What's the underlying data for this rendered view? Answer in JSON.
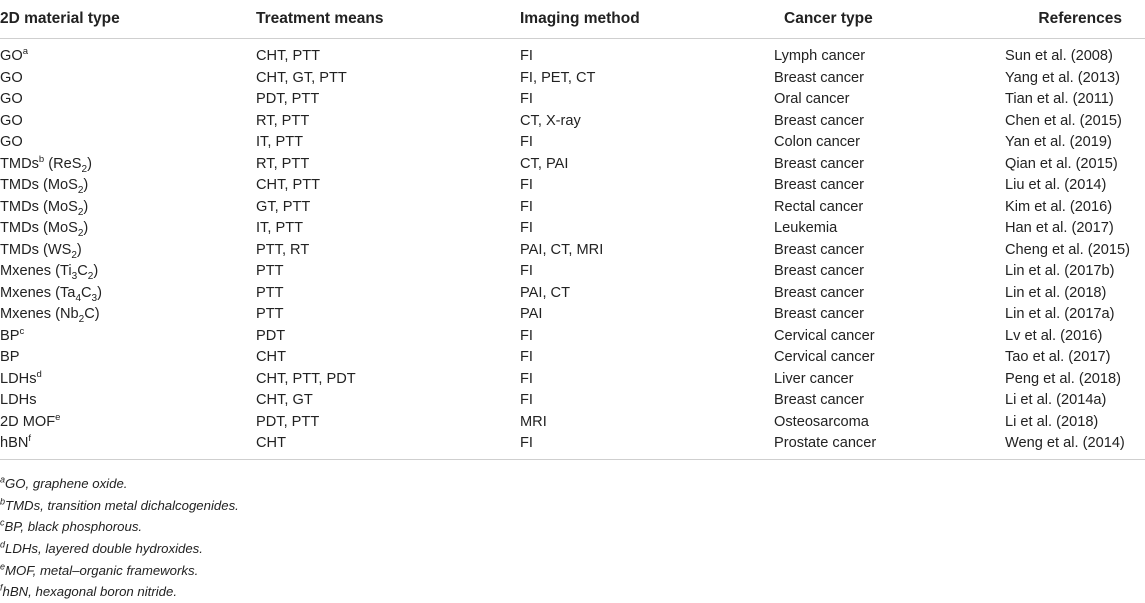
{
  "headers": [
    "2D material type",
    "Treatment means",
    "Imaging method",
    "Cancer type",
    "References"
  ],
  "rows": [
    {
      "mat": "GO",
      "mat_sup": "a",
      "mat_sub": "",
      "mat_tail": "",
      "treat": "CHT, PTT",
      "img": "FI",
      "cancer": "Lymph cancer",
      "ref": "Sun et al. (2008)"
    },
    {
      "mat": "GO",
      "mat_sup": "",
      "mat_sub": "",
      "mat_tail": "",
      "treat": "CHT, GT, PTT",
      "img": "FI, PET, CT",
      "cancer": "Breast cancer",
      "ref": "Yang et al. (2013)"
    },
    {
      "mat": "GO",
      "mat_sup": "",
      "mat_sub": "",
      "mat_tail": "",
      "treat": "PDT, PTT",
      "img": "FI",
      "cancer": "Oral cancer",
      "ref": "Tian et al. (2011)"
    },
    {
      "mat": "GO",
      "mat_sup": "",
      "mat_sub": "",
      "mat_tail": "",
      "treat": "RT, PTT",
      "img": "CT, X-ray",
      "cancer": "Breast cancer",
      "ref": "Chen et al. (2015)"
    },
    {
      "mat": "GO",
      "mat_sup": "",
      "mat_sub": "",
      "mat_tail": "",
      "treat": "IT, PTT",
      "img": "FI",
      "cancer": "Colon cancer",
      "ref": "Yan et al. (2019)"
    },
    {
      "mat": "TMDs",
      "mat_sup": "b",
      "mat_sub": "",
      "mat_tail": " (ReS2)",
      "treat": "RT, PTT",
      "img": "CT, PAI",
      "cancer": "Breast cancer",
      "ref": "Qian et al. (2015)"
    },
    {
      "mat": "TMDs (MoS",
      "mat_sup": "",
      "mat_sub": "2",
      "mat_tail": ")",
      "treat": "CHT, PTT",
      "img": "FI",
      "cancer": "Breast cancer",
      "ref": "Liu et al. (2014)"
    },
    {
      "mat": "TMDs (MoS",
      "mat_sup": "",
      "mat_sub": "2",
      "mat_tail": ")",
      "treat": "GT, PTT",
      "img": "FI",
      "cancer": "Rectal cancer",
      "ref": "Kim et al. (2016)"
    },
    {
      "mat": "TMDs (MoS",
      "mat_sup": "",
      "mat_sub": "2",
      "mat_tail": ")",
      "treat": "IT, PTT",
      "img": "FI",
      "cancer": "Leukemia",
      "ref": "Han et al. (2017)"
    },
    {
      "mat": "TMDs (WS",
      "mat_sup": "",
      "mat_sub": "2",
      "mat_tail": ")",
      "treat": "PTT, RT",
      "img": "PAI, CT, MRI",
      "cancer": "Breast cancer",
      "ref": "Cheng et al. (2015)"
    },
    {
      "mat": "Mxenes (Ti3C2)",
      "mat_sup": "",
      "mat_sub": "",
      "mat_tail": "",
      "treat": "PTT",
      "img": "FI",
      "cancer": "Breast cancer",
      "ref": "Lin et al. (2017b)"
    },
    {
      "mat": "Mxenes (Ta4C3)",
      "mat_sup": "",
      "mat_sub": "",
      "mat_tail": "",
      "treat": "PTT",
      "img": "PAI, CT",
      "cancer": "Breast cancer",
      "ref": "Lin et al. (2018)"
    },
    {
      "mat": "Mxenes (Nb2C)",
      "mat_sup": "",
      "mat_sub": "",
      "mat_tail": "",
      "treat": "PTT",
      "img": "PAI",
      "cancer": "Breast cancer",
      "ref": "Lin et al. (2017a)"
    },
    {
      "mat": "BP",
      "mat_sup": "c",
      "mat_sub": "",
      "mat_tail": "",
      "treat": "PDT",
      "img": "FI",
      "cancer": "Cervical cancer",
      "ref": "Lv et al. (2016)"
    },
    {
      "mat": "BP",
      "mat_sup": "",
      "mat_sub": "",
      "mat_tail": "",
      "treat": "CHT",
      "img": "FI",
      "cancer": "Cervical cancer",
      "ref": "Tao et al. (2017)"
    },
    {
      "mat": "LDHs",
      "mat_sup": "d",
      "mat_sub": "",
      "mat_tail": "",
      "treat": "CHT, PTT, PDT",
      "img": "FI",
      "cancer": "Liver cancer",
      "ref": "Peng et al. (2018)"
    },
    {
      "mat": "LDHs",
      "mat_sup": "",
      "mat_sub": "",
      "mat_tail": "",
      "treat": "CHT, GT",
      "img": "FI",
      "cancer": "Breast cancer",
      "ref": "Li et al. (2014a)"
    },
    {
      "mat": "2D MOF",
      "mat_sup": "e",
      "mat_sub": "",
      "mat_tail": "",
      "treat": "PDT, PTT",
      "img": "MRI",
      "cancer": "Osteosarcoma",
      "ref": "Li et al. (2018)"
    },
    {
      "mat": "hBN",
      "mat_sup": "f",
      "mat_sub": "",
      "mat_tail": "",
      "treat": "CHT",
      "img": "FI",
      "cancer": "Prostate cancer",
      "ref": "Weng et al. (2014)"
    }
  ],
  "footnotes": [
    {
      "mark": "a",
      "text": "GO, graphene oxide."
    },
    {
      "mark": "b",
      "text": "TMDs, transition metal dichalcogenides."
    },
    {
      "mark": "c",
      "text": "BP, black phosphorous."
    },
    {
      "mark": "d",
      "text": "LDHs, layered double hydroxides."
    },
    {
      "mark": "e",
      "text": "MOF, metal–organic frameworks."
    },
    {
      "mark": "f",
      "text": "hBN, hexagonal boron nitride."
    }
  ]
}
